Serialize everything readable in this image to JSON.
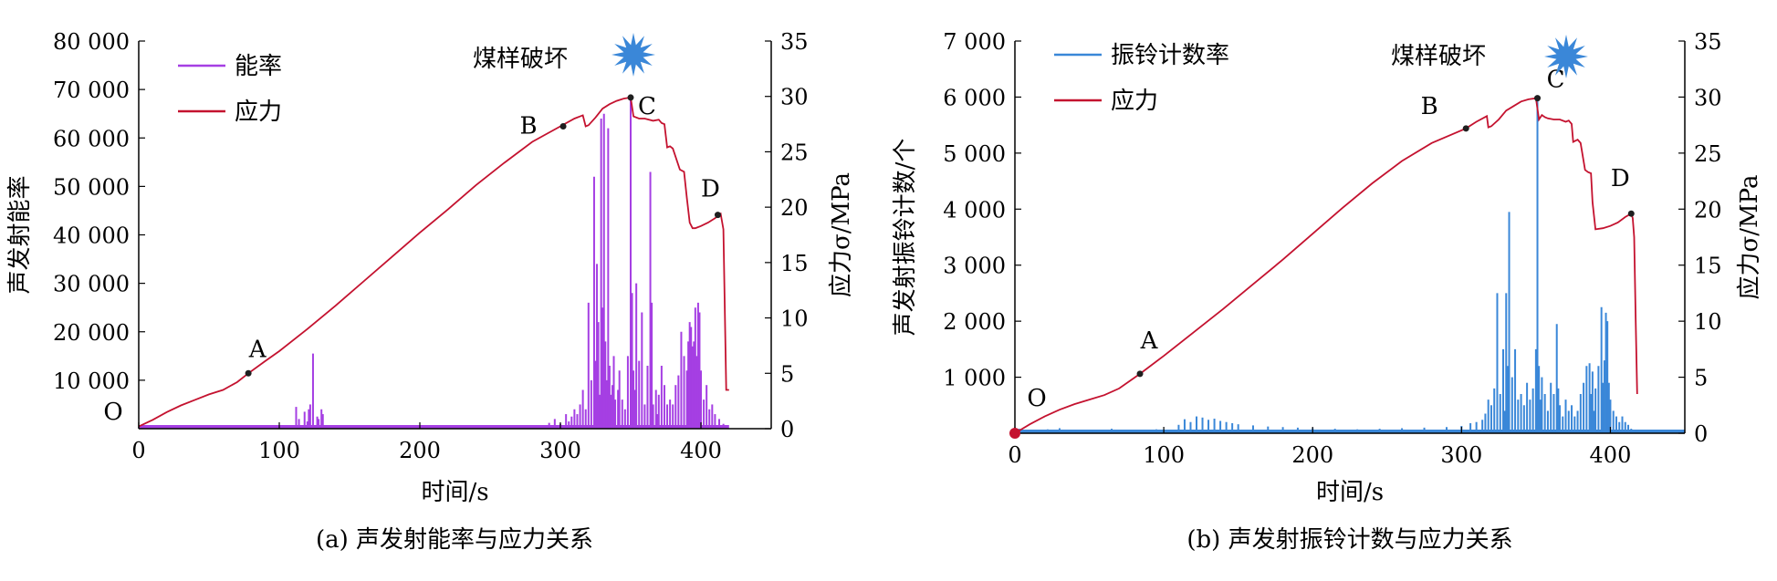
{
  "colors": {
    "energy": "#a53fe3",
    "ringdown": "#3a87d8",
    "stress": "#c4122f",
    "point": "#1f1f1f",
    "star": "#3a87d8",
    "axis": "#000000"
  },
  "chart_data": [
    {
      "type": "line",
      "panel": "a",
      "caption": "(a) 声发射能率与应力关系",
      "xlabel": "时间/s",
      "ylabel": "声发射能率",
      "ylabel_right": "应力σ/MPa",
      "xlim": [
        0,
        450
      ],
      "ylim": [
        0,
        80000
      ],
      "ylim_right": [
        0,
        35
      ],
      "xticks": [
        0,
        100,
        200,
        300,
        400
      ],
      "yticks": [
        10000,
        20000,
        30000,
        40000,
        50000,
        60000,
        70000,
        80000
      ],
      "ytick_labels": [
        "10 000",
        "20 000",
        "30 000",
        "40 000",
        "50 000",
        "60 000",
        "70 000",
        "80 000"
      ],
      "yticks_right": [
        0,
        5,
        10,
        15,
        20,
        25,
        30,
        35
      ],
      "ytick_labels_right": [
        "0",
        "5",
        "10",
        "15",
        "20",
        "25",
        "30",
        "35"
      ],
      "grid": false,
      "legend_position": "top-left",
      "series": [
        {
          "name": "能率",
          "kind": "spikes",
          "axis": "left",
          "baseline_to": 420,
          "x": [
            112,
            114,
            118,
            120,
            121,
            122,
            124,
            127,
            128,
            130,
            131,
            292,
            296,
            300,
            304,
            306,
            308,
            310,
            312,
            314,
            316,
            318,
            320,
            322,
            324,
            325,
            326,
            327,
            328,
            329,
            330,
            331,
            332,
            333,
            334,
            335,
            336,
            337,
            338,
            339,
            341,
            342,
            344,
            346,
            348,
            350,
            351,
            352,
            353,
            354,
            356,
            358,
            360,
            362,
            364,
            365,
            366,
            368,
            369,
            370,
            372,
            374,
            376,
            378,
            380,
            382,
            384,
            386,
            388,
            390,
            391,
            392,
            393,
            394,
            395,
            396,
            397,
            398,
            399,
            400,
            402,
            404,
            406,
            408,
            410,
            413,
            416
          ],
          "values": [
            4500,
            2000,
            3500,
            1500,
            4000,
            5000,
            15500,
            2500,
            2000,
            4000,
            3000,
            1200,
            2000,
            1000,
            3000,
            1500,
            2500,
            4000,
            3000,
            5000,
            8000,
            4000,
            26000,
            10000,
            52000,
            14000,
            34000,
            22000,
            7000,
            64000,
            25000,
            65000,
            18000,
            10000,
            62000,
            13000,
            7000,
            9000,
            15000,
            6000,
            8000,
            12000,
            6000,
            4000,
            15000,
            68000,
            28000,
            12000,
            8000,
            30000,
            14000,
            24000,
            5000,
            13000,
            53000,
            26000,
            5000,
            8000,
            3000,
            7000,
            13000,
            9000,
            5000,
            6000,
            5000,
            9000,
            11000,
            20000,
            15000,
            12000,
            18000,
            22000,
            21000,
            17000,
            18000,
            25000,
            15000,
            26000,
            24000,
            12000,
            6000,
            9000,
            4000,
            5000,
            3000,
            2000,
            1000
          ]
        },
        {
          "name": "应力",
          "kind": "line",
          "axis": "right",
          "x": [
            0,
            10,
            20,
            30,
            40,
            50,
            60,
            70,
            78,
            90,
            100,
            120,
            140,
            160,
            180,
            200,
            220,
            240,
            260,
            280,
            300,
            310,
            316,
            318,
            320,
            325,
            330,
            335,
            340,
            345,
            350,
            352,
            356,
            360,
            366,
            370,
            372,
            374,
            376,
            378,
            380,
            385,
            388,
            390,
            392,
            394,
            396,
            400,
            405,
            410,
            413,
            414,
            416,
            418,
            420
          ],
          "values": [
            0.2,
            0.8,
            1.5,
            2.1,
            2.6,
            3.1,
            3.5,
            4.2,
            5.0,
            6.1,
            7.0,
            9.0,
            11.1,
            13.3,
            15.5,
            17.7,
            19.8,
            22.0,
            24.0,
            25.9,
            27.3,
            28.0,
            28.3,
            27.3,
            27.4,
            28.1,
            28.9,
            29.3,
            29.6,
            29.8,
            29.9,
            28.2,
            28.0,
            28.0,
            27.8,
            27.9,
            27.6,
            27.5,
            25.4,
            25.5,
            25.3,
            23.4,
            23.2,
            20.8,
            18.6,
            18.1,
            18.1,
            18.3,
            18.6,
            19.0,
            19.3,
            19.4,
            18.0,
            3.5,
            3.5
          ]
        }
      ],
      "points": [
        {
          "label": "O",
          "x": 0,
          "y": 0
        },
        {
          "label": "A",
          "x": 78,
          "y": 5.0
        },
        {
          "label": "B",
          "x": 302,
          "y": 27.3
        },
        {
          "label": "C",
          "x": 350,
          "y": 29.9
        },
        {
          "label": "D",
          "x": 412,
          "y": 19.3
        }
      ],
      "annotation": "煤样破坏"
    },
    {
      "type": "line",
      "panel": "b",
      "caption": "(b) 声发射振铃计数与应力关系",
      "xlabel": "时间/s",
      "ylabel": "声发射振铃计数/个",
      "ylabel_right": "应力σ/MPa",
      "xlim": [
        0,
        450
      ],
      "ylim": [
        0,
        7000
      ],
      "ylim_right": [
        0,
        35
      ],
      "xticks": [
        0,
        100,
        200,
        300,
        400
      ],
      "yticks": [
        1000,
        2000,
        3000,
        4000,
        5000,
        6000,
        7000
      ],
      "ytick_labels": [
        "1 000",
        "2 000",
        "3 000",
        "4 000",
        "5 000",
        "6 000",
        "7 000"
      ],
      "yticks_right": [
        0,
        5,
        10,
        15,
        20,
        25,
        30,
        35
      ],
      "ytick_labels_right": [
        "0",
        "5",
        "10",
        "15",
        "20",
        "25",
        "30",
        "35"
      ],
      "grid": false,
      "legend_position": "top-left",
      "series": [
        {
          "name": "振铃计数率",
          "kind": "spikes",
          "axis": "left",
          "baseline_to": 450,
          "x": [
            3,
            8,
            15,
            22,
            30,
            40,
            52,
            65,
            80,
            95,
            110,
            114,
            118,
            122,
            126,
            130,
            134,
            138,
            142,
            146,
            150,
            160,
            170,
            180,
            190,
            200,
            215,
            230,
            245,
            260,
            275,
            290,
            300,
            306,
            310,
            314,
            316,
            318,
            320,
            322,
            324,
            326,
            328,
            329,
            330,
            331,
            332,
            334,
            336,
            338,
            340,
            342,
            344,
            346,
            348,
            350,
            351,
            352,
            353,
            354,
            356,
            358,
            360,
            362,
            364,
            365,
            366,
            368,
            370,
            372,
            374,
            376,
            378,
            380,
            382,
            384,
            386,
            387,
            388,
            389,
            390,
            392,
            394,
            395,
            396,
            397,
            398,
            399,
            400,
            402,
            404,
            406,
            408,
            410,
            412,
            414,
            416
          ],
          "values": [
            80,
            60,
            40,
            70,
            90,
            60,
            50,
            80,
            60,
            70,
            150,
            250,
            200,
            300,
            280,
            240,
            260,
            220,
            200,
            180,
            160,
            140,
            120,
            110,
            100,
            90,
            80,
            70,
            80,
            90,
            100,
            110,
            130,
            180,
            200,
            240,
            350,
            600,
            500,
            800,
            2500,
            700,
            1500,
            400,
            2500,
            1200,
            3950,
            1000,
            1500,
            600,
            700,
            500,
            900,
            600,
            800,
            1500,
            5950,
            1200,
            600,
            1000,
            700,
            400,
            900,
            700,
            1950,
            800,
            500,
            300,
            600,
            400,
            500,
            300,
            400,
            700,
            900,
            1200,
            1250,
            700,
            1100,
            400,
            800,
            1200,
            2250,
            900,
            1300,
            2150,
            2000,
            900,
            600,
            400,
            300,
            200,
            300,
            200,
            150,
            80,
            60
          ]
        },
        {
          "name": "应力",
          "kind": "line",
          "axis": "right",
          "x": [
            0,
            10,
            20,
            30,
            40,
            50,
            60,
            70,
            84,
            100,
            120,
            140,
            160,
            180,
            200,
            220,
            240,
            260,
            280,
            303,
            310,
            317,
            318,
            320,
            325,
            330,
            335,
            340,
            345,
            350,
            352,
            354,
            356,
            358,
            362,
            366,
            370,
            372,
            374,
            375,
            378,
            380,
            383,
            385,
            387,
            388,
            390,
            395,
            400,
            405,
            410,
            414,
            415,
            416,
            417,
            418
          ],
          "values": [
            0.0,
            0.8,
            1.5,
            2.1,
            2.6,
            3.0,
            3.4,
            4.0,
            5.3,
            6.9,
            9.0,
            11.1,
            13.3,
            15.5,
            17.8,
            20.1,
            22.3,
            24.3,
            25.9,
            27.2,
            27.8,
            28.3,
            27.3,
            27.4,
            28.0,
            28.8,
            29.2,
            29.6,
            29.8,
            29.9,
            28.0,
            28.4,
            28.2,
            28.1,
            28.0,
            28.0,
            27.8,
            27.9,
            27.6,
            26.0,
            26.2,
            25.9,
            23.5,
            23.3,
            23.2,
            20.6,
            18.2,
            18.3,
            18.5,
            18.8,
            19.3,
            19.6,
            19.2,
            17.5,
            10.0,
            3.5
          ]
        }
      ],
      "points": [
        {
          "label": "O",
          "x": 0,
          "y": 0
        },
        {
          "label": "A",
          "x": 84,
          "y": 5.3
        },
        {
          "label": "B",
          "x": 303,
          "y": 27.2
        },
        {
          "label": "C",
          "x": 351,
          "y": 29.9
        },
        {
          "label": "D",
          "x": 414,
          "y": 19.6
        }
      ],
      "annotation": "煤样破坏"
    }
  ]
}
